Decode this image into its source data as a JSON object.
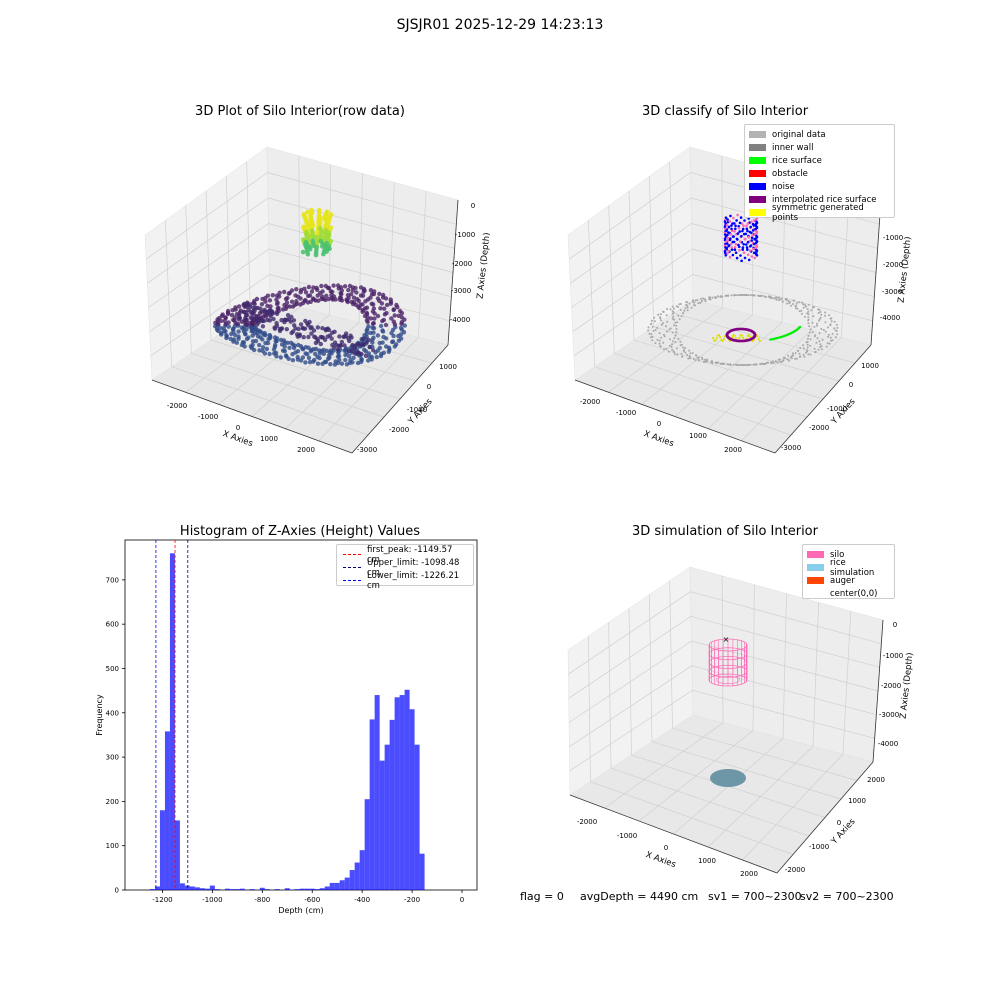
{
  "suptitle": "SJSJR01 2025-12-29 14:23:13",
  "panels": {
    "raw": {
      "title": "3D Plot of Silo Interior(row data)",
      "xlabel": "X Axies",
      "ylabel": "Y Axies",
      "zlabel": "Z Axies (Depth)",
      "xticks": [
        "-2000",
        "-1000",
        "0",
        "1000",
        "2000"
      ],
      "yticks": [
        "1000",
        "0",
        "-1000",
        "-2000",
        "-3000"
      ],
      "zticks": [
        "0",
        "-1000",
        "-2000",
        "-3000",
        "-4000"
      ]
    },
    "classify": {
      "title": "3D classify of Silo Interior",
      "xlabel": "X Axies",
      "ylabel": "Y Axies",
      "zlabel": "Z Axies (Depth)",
      "xticks": [
        "-2000",
        "-1000",
        "0",
        "1000",
        "2000"
      ],
      "yticks": [
        "1000",
        "0",
        "-1000",
        "-2000",
        "-3000"
      ],
      "zticks": [
        "-1000",
        "-2000",
        "-3000",
        "-4000"
      ],
      "legend": [
        {
          "label": "original data",
          "color": "#b3b3b3"
        },
        {
          "label": "inner wall",
          "color": "#808080"
        },
        {
          "label": "rice surface",
          "color": "#00ff00"
        },
        {
          "label": "obstacle",
          "color": "#ff0000"
        },
        {
          "label": "noise",
          "color": "#0000ff"
        },
        {
          "label": "interpolated rice surface",
          "color": "#800080"
        },
        {
          "label": "symmetric generated points",
          "color": "#ffff00"
        }
      ]
    },
    "simulation": {
      "title": "3D simulation of Silo Interior",
      "xlabel": "X Axies",
      "ylabel": "Y Axies",
      "zlabel": "Z Axies (Depth)",
      "xticks": [
        "-2000",
        "-1000",
        "0",
        "1000",
        "2000"
      ],
      "yticks": [
        "2000",
        "1000",
        "0",
        "-1000",
        "-2000"
      ],
      "zticks": [
        "0",
        "-1000",
        "-2000",
        "-3000",
        "-4000"
      ],
      "legend": [
        {
          "label": "silo",
          "color": "#ff69b4"
        },
        {
          "label": "rice simulation",
          "color": "#87ceeb"
        },
        {
          "label": "auger",
          "color": "#ff4500"
        },
        {
          "label": "center(0,0)",
          "color": "#ffffff"
        }
      ]
    }
  },
  "histogram": {
    "title": "Histogram of Z-Axies (Height) Values",
    "xlabel": "Depth (cm)",
    "ylabel": "Frequency",
    "legend": [
      {
        "label": "first_peak: -1149.57 cm",
        "color": "#ff0000"
      },
      {
        "label": "Upper_limit: -1098.48 cm",
        "color": "#000080"
      },
      {
        "label": "Lower_limit: -1226.21 cm",
        "color": "#0000ff"
      }
    ]
  },
  "chart_data": {
    "type": "bar",
    "title": "Histogram of Z-Axies (Height) Values",
    "xlabel": "Depth (cm)",
    "ylabel": "Frequency",
    "xlim": [
      -1350,
      60
    ],
    "ylim": [
      0,
      790
    ],
    "bar_color": "#0000ff",
    "xticks": [
      -1200,
      -1000,
      -800,
      -600,
      -400,
      -200,
      0
    ],
    "yticks": [
      0,
      100,
      200,
      300,
      400,
      500,
      600,
      700
    ],
    "bin_width": 20,
    "bins": [
      {
        "x": -1250,
        "y": 2
      },
      {
        "x": -1230,
        "y": 8
      },
      {
        "x": -1210,
        "y": 180
      },
      {
        "x": -1190,
        "y": 358
      },
      {
        "x": -1170,
        "y": 760
      },
      {
        "x": -1150,
        "y": 157
      },
      {
        "x": -1130,
        "y": 15
      },
      {
        "x": -1110,
        "y": 10
      },
      {
        "x": -1090,
        "y": 8
      },
      {
        "x": -1070,
        "y": 6
      },
      {
        "x": -1050,
        "y": 4
      },
      {
        "x": -1030,
        "y": 3
      },
      {
        "x": -1010,
        "y": 10
      },
      {
        "x": -990,
        "y": 2
      },
      {
        "x": -950,
        "y": 3
      },
      {
        "x": -930,
        "y": 2
      },
      {
        "x": -910,
        "y": 2
      },
      {
        "x": -890,
        "y": 3
      },
      {
        "x": -850,
        "y": 2
      },
      {
        "x": -810,
        "y": 5
      },
      {
        "x": -790,
        "y": 2
      },
      {
        "x": -750,
        "y": 2
      },
      {
        "x": -710,
        "y": 4
      },
      {
        "x": -690,
        "y": 1
      },
      {
        "x": -670,
        "y": 2
      },
      {
        "x": -650,
        "y": 3
      },
      {
        "x": -630,
        "y": 3
      },
      {
        "x": -610,
        "y": 3
      },
      {
        "x": -590,
        "y": 2
      },
      {
        "x": -570,
        "y": 4
      },
      {
        "x": -550,
        "y": 8
      },
      {
        "x": -530,
        "y": 16
      },
      {
        "x": -510,
        "y": 16
      },
      {
        "x": -490,
        "y": 22
      },
      {
        "x": -470,
        "y": 28
      },
      {
        "x": -450,
        "y": 45
      },
      {
        "x": -430,
        "y": 62
      },
      {
        "x": -410,
        "y": 90
      },
      {
        "x": -390,
        "y": 205
      },
      {
        "x": -370,
        "y": 385
      },
      {
        "x": -350,
        "y": 440
      },
      {
        "x": -330,
        "y": 292
      },
      {
        "x": -310,
        "y": 328
      },
      {
        "x": -290,
        "y": 384
      },
      {
        "x": -270,
        "y": 435
      },
      {
        "x": -250,
        "y": 440
      },
      {
        "x": -230,
        "y": 452
      },
      {
        "x": -210,
        "y": 408
      },
      {
        "x": -190,
        "y": 328
      },
      {
        "x": -170,
        "y": 82
      }
    ],
    "vlines": [
      {
        "name": "first_peak",
        "x": -1149.57,
        "color": "#ff0000"
      },
      {
        "name": "Upper_limit",
        "x": -1098.48,
        "color": "#000080"
      },
      {
        "name": "Lower_limit",
        "x": -1226.21,
        "color": "#0000ff"
      }
    ]
  },
  "footer": {
    "flag": "flag = 0",
    "avg_depth": "avgDepth = 4490 cm",
    "sv1": "sv1 = 700~2300",
    "sv2": "sv2 = 700~2300"
  }
}
